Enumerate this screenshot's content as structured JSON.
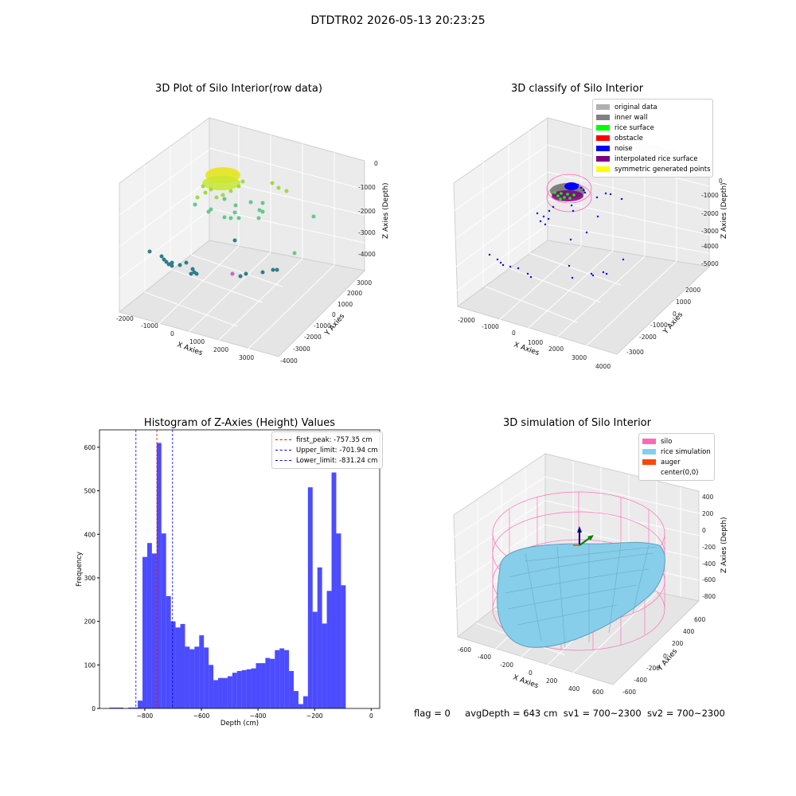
{
  "suptitle": "DTDTR02 2026-05-13 20:23:25",
  "footer": {
    "flag": "flag = 0",
    "avg_depth": "avgDepth = 643 cm",
    "sv1": "sv1 = 700~2300",
    "sv2": "sv2 = 700~2300"
  },
  "chart_data": [
    {
      "type": "scatter",
      "title": "3D Plot of Silo Interior(row data)",
      "xlabel": "X Axies",
      "ylabel": "Y Axies",
      "zlabel": "Z Axies (Depth)",
      "x_ticks": [
        "-2000",
        "-1000",
        "0",
        "1000",
        "2000",
        "3000"
      ],
      "y_ticks": [
        "3000",
        "2000",
        "1000",
        "0",
        "-1000",
        "-2000",
        "-3000",
        "-4000"
      ],
      "z_ticks": [
        "0",
        "-1000",
        "-2000",
        "-3000",
        "-4000"
      ],
      "grid": true
    },
    {
      "type": "scatter",
      "title": "3D classify of Silo Interior",
      "xlabel": "X Axies",
      "ylabel": "Y Axies",
      "zlabel": "Z Axies (Depth)",
      "x_ticks": [
        "-2000",
        "-1000",
        "0",
        "1000",
        "2000",
        "3000",
        "4000"
      ],
      "y_ticks": [
        "2000",
        "1000",
        "0",
        "-1000",
        "-2000",
        "-3000"
      ],
      "z_ticks": [
        "0",
        "-1000",
        "-2000",
        "-3000",
        "-4000",
        "-5000"
      ],
      "legend_position": "top-right",
      "legend": [
        {
          "name": "original data",
          "color": "#b0b0b0"
        },
        {
          "name": "inner wall",
          "color": "#808080"
        },
        {
          "name": "rice surface",
          "color": "#00ff00"
        },
        {
          "name": "obstacle",
          "color": "#ff0000"
        },
        {
          "name": "noise",
          "color": "#0000ff"
        },
        {
          "name": "interpolated rice surface",
          "color": "#800080"
        },
        {
          "name": "symmetric generated points",
          "color": "#ffff00"
        }
      ],
      "grid": true
    },
    {
      "type": "bar",
      "title": "Histogram of Z-Axies (Height) Values",
      "xlabel": "Depth (cm)",
      "ylabel": "Frequency",
      "xlim": [
        -960,
        30
      ],
      "ylim": [
        0,
        640
      ],
      "x_ticks": [
        "−800",
        "−600",
        "−400",
        "−200",
        "0"
      ],
      "y_ticks": [
        "0",
        "100",
        "200",
        "300",
        "400",
        "500",
        "600"
      ],
      "bin_width": 16.7,
      "bin_start": -925,
      "values": [
        2,
        2,
        2,
        0,
        2,
        2,
        18,
        348,
        380,
        356,
        610,
        402,
        258,
        200,
        186,
        194,
        142,
        136,
        142,
        168,
        140,
        100,
        65,
        70,
        70,
        74,
        82,
        86,
        88,
        90,
        92,
        104,
        104,
        116,
        114,
        134,
        138,
        134,
        86,
        40,
        10,
        28,
        508,
        222,
        324,
        195,
        270,
        542,
        402,
        283
      ],
      "bar_color": "#0000ff",
      "legend_position": "top-right",
      "legend": [
        {
          "name": "first_peak: -757.35 cm",
          "color": "#ff0000",
          "value": -757.35
        },
        {
          "name": "Upper_limit: -701.94 cm",
          "color": "#0000ff",
          "value": -701.94
        },
        {
          "name": "Lower_limit: -831.24 cm",
          "color": "#0000ff",
          "value": -831.24
        }
      ],
      "grid": false
    },
    {
      "type": "scatter",
      "title": "3D simulation of Silo Interior",
      "xlabel": "X Axies",
      "ylabel": "Y Axies",
      "zlabel": "Z Axies (Depth)",
      "x_ticks": [
        "-600",
        "-400",
        "-200",
        "0",
        "200",
        "400",
        "600"
      ],
      "y_ticks": [
        "600",
        "400",
        "200",
        "0",
        "-200",
        "-400",
        "-600"
      ],
      "z_ticks": [
        "400",
        "200",
        "0",
        "-200",
        "-400",
        "-600",
        "-800"
      ],
      "legend_position": "top-right",
      "legend": [
        {
          "name": "silo",
          "color": "#ff69b4"
        },
        {
          "name": "rice simulation",
          "color": "#87ceeb"
        },
        {
          "name": "auger",
          "color": "#ff4500"
        },
        {
          "name": "center(0,0)",
          "color": "#ffffff"
        }
      ],
      "grid": true
    }
  ]
}
